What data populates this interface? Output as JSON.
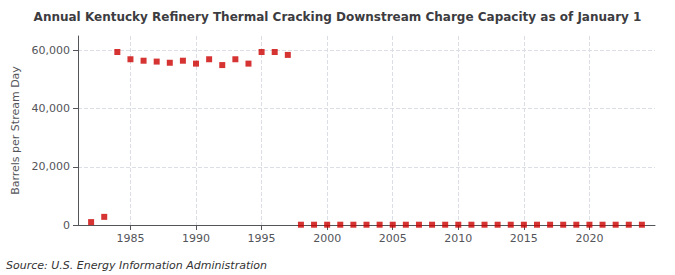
{
  "chart_data": {
    "type": "scatter",
    "title": "Annual Kentucky Refinery Thermal Cracking Downstream Charge Capacity as of January 1",
    "ylabel": "Barrels per Stream Day",
    "annotations": [
      "Source: U.S. Energy Information Administration"
    ],
    "x": [
      1982,
      1983,
      1984,
      1985,
      1986,
      1987,
      1988,
      1989,
      1990,
      1991,
      1992,
      1993,
      1994,
      1995,
      1996,
      1997,
      1998,
      1999,
      2000,
      2001,
      2002,
      2003,
      2004,
      2005,
      2006,
      2007,
      2008,
      2009,
      2010,
      2011,
      2012,
      2013,
      2014,
      2015,
      2016,
      2017,
      2018,
      2019,
      2020,
      2021,
      2022,
      2023,
      2024
    ],
    "values": [
      1000,
      2800,
      59500,
      57000,
      56500,
      56200,
      55800,
      56500,
      55500,
      57000,
      55000,
      57000,
      55500,
      59500,
      59500,
      58500,
      100,
      100,
      100,
      100,
      100,
      100,
      100,
      100,
      100,
      100,
      100,
      100,
      100,
      100,
      100,
      100,
      100,
      100,
      100,
      100,
      100,
      100,
      100,
      100,
      100,
      100,
      100
    ],
    "color": "#cc0000",
    "marker": "square",
    "xlim": [
      1981,
      2025
    ],
    "xticks": [
      1985,
      1990,
      1995,
      2000,
      2005,
      2010,
      2015,
      2020
    ],
    "ylim": [
      0,
      65000
    ],
    "yticks": [
      0,
      {
        "value": 20000,
        "label": "20,000"
      },
      {
        "value": 40000,
        "label": "40,000"
      },
      {
        "value": 60000,
        "label": "60,000"
      }
    ],
    "grid": true
  }
}
